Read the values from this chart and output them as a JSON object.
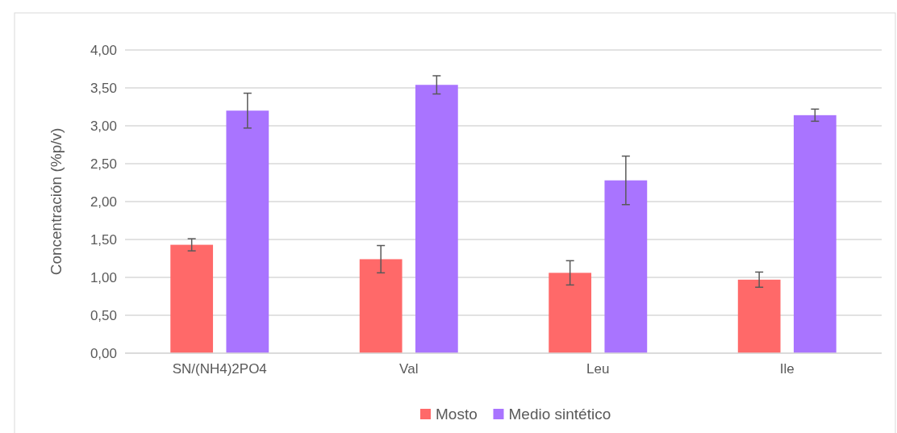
{
  "chart_data": {
    "type": "bar",
    "ylabel": "Concentración (%p/v)",
    "categories": [
      "SN/(NH4)2PO4",
      "Val",
      "Leu",
      "Ile"
    ],
    "series": [
      {
        "name": "Mosto",
        "color": "#ff6969",
        "values": [
          1.43,
          1.24,
          1.06,
          0.97
        ],
        "errors": [
          0.08,
          0.18,
          0.16,
          0.1
        ]
      },
      {
        "name": "Medio sintético",
        "color": "#a974ff",
        "values": [
          3.2,
          3.54,
          2.28,
          3.14
        ],
        "errors": [
          0.23,
          0.12,
          0.32,
          0.08
        ]
      }
    ],
    "ylim": [
      0,
      4
    ],
    "yticks": [
      {
        "value": 0,
        "label": "0,00"
      },
      {
        "value": 0.5,
        "label": "0,50"
      },
      {
        "value": 1,
        "label": "1,00"
      },
      {
        "value": 1.5,
        "label": "1,50"
      },
      {
        "value": 2,
        "label": "2,00"
      },
      {
        "value": 2.5,
        "label": "2,50"
      },
      {
        "value": 3,
        "label": "3,00"
      },
      {
        "value": 3.5,
        "label": "3,50"
      },
      {
        "value": 4,
        "label": "4,00"
      }
    ],
    "grid": "y",
    "legend": "bottom"
  }
}
